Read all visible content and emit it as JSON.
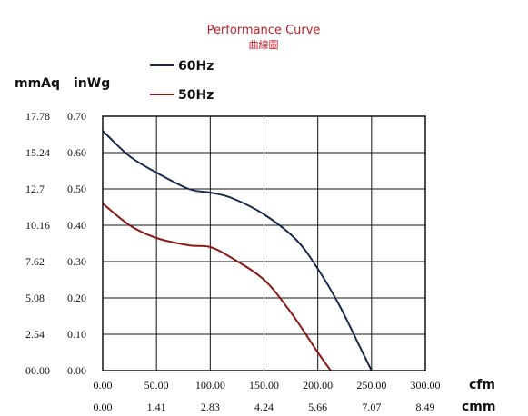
{
  "chart_data": {
    "type": "line",
    "title": "Performance Curve",
    "subtitle": "曲線圖",
    "y_axis_labels": [
      "mmAq",
      "inWg"
    ],
    "x_axis_labels": [
      "cfm",
      "cmm"
    ],
    "x_ticks_cfm": [
      "0.00",
      "50.00",
      "100.00",
      "150.00",
      "200.00",
      "250.00",
      "300.00"
    ],
    "x_ticks_cmm": [
      "0.00",
      "1.41",
      "2.83",
      "4.24",
      "5.66",
      "7.07",
      "8.49"
    ],
    "y_ticks_inwg": [
      "0.00",
      "0.10",
      "0.20",
      "0.30",
      "0.40",
      "0.50",
      "0.60",
      "0.70"
    ],
    "y_ticks_mmaq": [
      "00.00",
      "2.54",
      "5.08",
      "7.62",
      "10.16",
      "12.7",
      "15.24",
      "17.78"
    ],
    "xlim": [
      0,
      300
    ],
    "ylim": [
      0,
      0.7
    ],
    "grid": true,
    "legend_position": "top-left",
    "series": [
      {
        "name": "60Hz",
        "color": "#1a2a4d",
        "points": [
          [
            0,
            0.66
          ],
          [
            25,
            0.59
          ],
          [
            50,
            0.545
          ],
          [
            80,
            0.5
          ],
          [
            100,
            0.49
          ],
          [
            120,
            0.475
          ],
          [
            150,
            0.43
          ],
          [
            180,
            0.36
          ],
          [
            200,
            0.28
          ],
          [
            220,
            0.18
          ],
          [
            240,
            0.06
          ],
          [
            250,
            0.0
          ]
        ]
      },
      {
        "name": "50Hz",
        "color": "#8b1a1a",
        "points": [
          [
            0,
            0.46
          ],
          [
            25,
            0.4
          ],
          [
            50,
            0.365
          ],
          [
            80,
            0.345
          ],
          [
            100,
            0.34
          ],
          [
            120,
            0.31
          ],
          [
            150,
            0.25
          ],
          [
            175,
            0.16
          ],
          [
            200,
            0.05
          ],
          [
            212,
            0.0
          ]
        ]
      }
    ]
  }
}
